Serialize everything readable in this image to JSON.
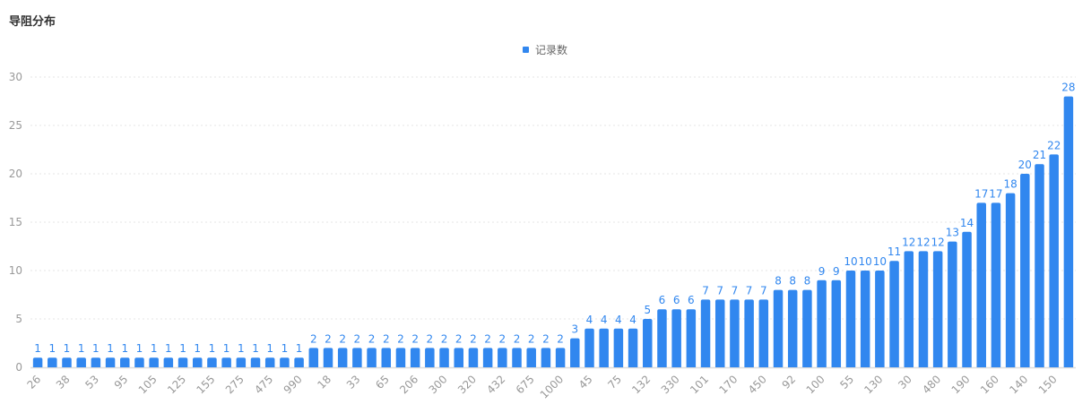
{
  "chart_data": {
    "type": "bar",
    "title": "导阻分布",
    "legend": {
      "entries": [
        "记录数"
      ],
      "placement": "top-center"
    },
    "ylim": [
      0,
      30
    ],
    "yticks": [
      0,
      5,
      10,
      15,
      20,
      25,
      30
    ],
    "grid": true,
    "color": "#3187ef",
    "categories": [
      "26",
      "",
      "38",
      "",
      "53",
      "",
      "95",
      "",
      "105",
      "",
      "125",
      "",
      "155",
      "",
      "275",
      "",
      "475",
      "",
      "990",
      "",
      "18",
      "",
      "33",
      "",
      "65",
      "",
      "206",
      "",
      "300",
      "",
      "320",
      "",
      "432",
      "",
      "675",
      "",
      "1000",
      "",
      "45",
      "",
      "75",
      "",
      "132",
      "",
      "330",
      "",
      "101",
      "",
      "170",
      "",
      "450",
      "",
      "92",
      "",
      "100",
      "",
      "55",
      "",
      "130",
      "",
      "30",
      "",
      "480",
      "",
      "190",
      "",
      "160",
      "",
      "140",
      "",
      "150",
      ""
    ],
    "series": [
      {
        "name": "记录数",
        "values": [
          1,
          1,
          1,
          1,
          1,
          1,
          1,
          1,
          1,
          1,
          1,
          1,
          1,
          1,
          1,
          1,
          1,
          1,
          1,
          2,
          2,
          2,
          2,
          2,
          2,
          2,
          2,
          2,
          2,
          2,
          2,
          2,
          2,
          2,
          2,
          2,
          2,
          3,
          4,
          4,
          4,
          4,
          5,
          6,
          6,
          6,
          7,
          7,
          7,
          7,
          7,
          8,
          8,
          8,
          9,
          9,
          10,
          10,
          10,
          11,
          12,
          12,
          12,
          13,
          14,
          17,
          17,
          18,
          20,
          21,
          22,
          28
        ]
      }
    ]
  }
}
